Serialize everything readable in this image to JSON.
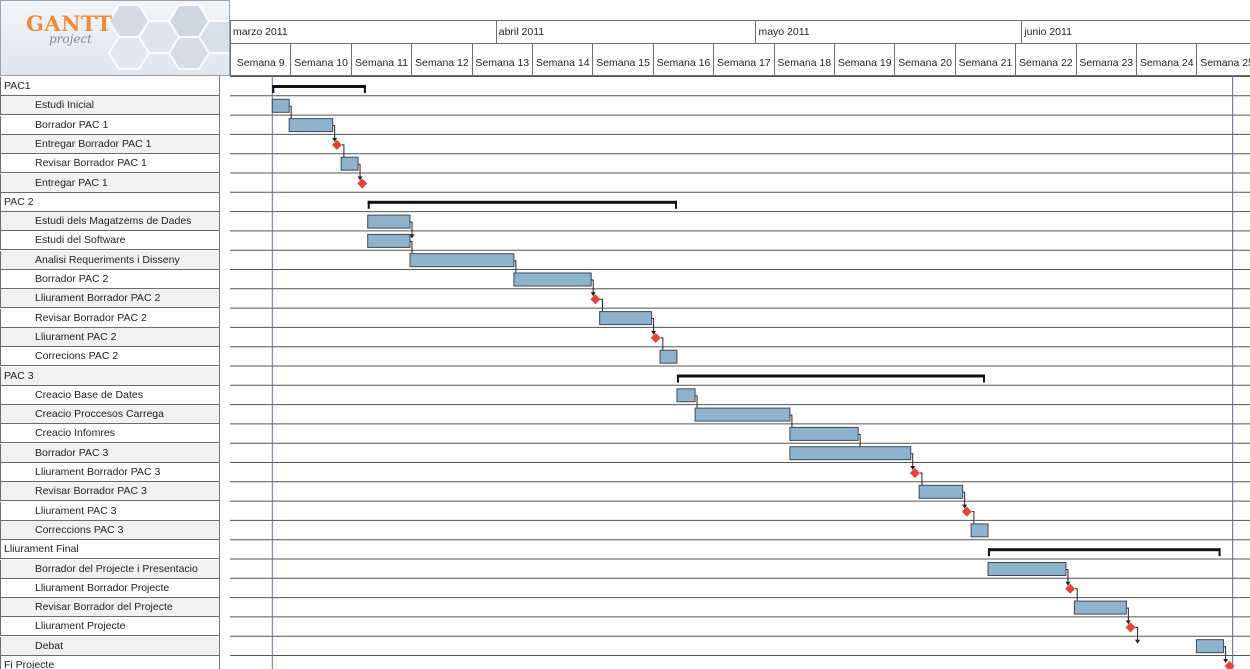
{
  "app": {
    "logo_main": "GANTT",
    "logo_sub": "project"
  },
  "timeline": {
    "months": [
      {
        "label": "marzo 2011",
        "startWeekIndex": 0,
        "weeks": 4.4
      },
      {
        "label": "abril 2011",
        "startWeekIndex": 4.4,
        "weeks": 4.3
      },
      {
        "label": "mayo 2011",
        "startWeekIndex": 8.7,
        "weeks": 4.4
      },
      {
        "label": "junio 2011",
        "startWeekIndex": 13.1,
        "weeks": 3.9
      }
    ],
    "weeks": [
      "Semana 9",
      "Semana 10",
      "Semana 11",
      "Semana 12",
      "Semana 13",
      "Semana 14",
      "Semana 15",
      "Semana 16",
      "Semana 17",
      "Semana 18",
      "Semana 19",
      "Semana 20",
      "Semana 21",
      "Semana 22",
      "Semana 23",
      "Semana 24",
      "Semana 25"
    ]
  },
  "colors": {
    "bar_fill": "#8fb2cd",
    "bar_stroke": "#3a4a5a",
    "milestone": "#e8403a",
    "summary": "#111111",
    "today_line": "#6060c8",
    "grid_line": "#555555"
  },
  "tasks": [
    {
      "name": "PAC1",
      "type": "summary",
      "start": 0.7,
      "end": 2.25
    },
    {
      "name": "Estudi Inicial",
      "type": "task",
      "start": 0.7,
      "end": 0.98
    },
    {
      "name": "Borrador PAC 1",
      "type": "task",
      "start": 0.98,
      "end": 1.7
    },
    {
      "name": "Entregar Borrador PAC 1",
      "type": "milestone",
      "start": 1.77
    },
    {
      "name": "Revisar Borrador PAC 1",
      "type": "task",
      "start": 1.84,
      "end": 2.12
    },
    {
      "name": "Entregar PAC 1",
      "type": "milestone",
      "start": 2.19
    },
    {
      "name": "PAC 2",
      "type": "summary",
      "start": 2.28,
      "end": 7.4
    },
    {
      "name": "Estudi dels Magatzems de Dades",
      "type": "task",
      "start": 2.28,
      "end": 2.98
    },
    {
      "name": "Estudi del Software",
      "type": "task",
      "start": 2.28,
      "end": 2.98
    },
    {
      "name": "Analisi Requeriments i Disseny",
      "type": "task",
      "start": 2.98,
      "end": 4.7
    },
    {
      "name": "Borrador PAC 2",
      "type": "task",
      "start": 4.7,
      "end": 5.98
    },
    {
      "name": "Lliurament Borrador PAC 2",
      "type": "milestone",
      "start": 6.05
    },
    {
      "name": "Revisar Borrador PAC 2",
      "type": "task",
      "start": 6.12,
      "end": 6.98
    },
    {
      "name": "Lliurament PAC 2",
      "type": "milestone",
      "start": 7.05
    },
    {
      "name": "Correcions PAC 2",
      "type": "task",
      "start": 7.12,
      "end": 7.4
    },
    {
      "name": "PAC 3",
      "type": "summary",
      "start": 7.4,
      "end": 12.5
    },
    {
      "name": "Creacio Base de Dates",
      "type": "task",
      "start": 7.4,
      "end": 7.7
    },
    {
      "name": "Creacio Proccesos Carrega",
      "type": "task",
      "start": 7.7,
      "end": 9.27
    },
    {
      "name": "Creacio Infomres",
      "type": "task",
      "start": 9.27,
      "end": 10.4
    },
    {
      "name": "Borrador PAC 3",
      "type": "task",
      "start": 9.27,
      "end": 11.27
    },
    {
      "name": "Lliurament Borrador PAC 3",
      "type": "milestone",
      "start": 11.34
    },
    {
      "name": "Revisar Borrador PAC 3",
      "type": "task",
      "start": 11.41,
      "end": 12.13
    },
    {
      "name": "Lliurament PAC 3",
      "type": "milestone",
      "start": 12.2
    },
    {
      "name": "Correccions PAC 3",
      "type": "task",
      "start": 12.27,
      "end": 12.55
    },
    {
      "name": "Lliurament Final",
      "type": "summary",
      "start": 12.55,
      "end": 16.4
    },
    {
      "name": "Borrador del Projecte i Presentacio",
      "type": "task",
      "start": 12.55,
      "end": 13.84
    },
    {
      "name": "Lliurament Borrador Projecte",
      "type": "milestone",
      "start": 13.91
    },
    {
      "name": "Revisar Borrador del Projecte",
      "type": "task",
      "start": 13.98,
      "end": 14.84
    },
    {
      "name": "Lliurament Projecte",
      "type": "milestone",
      "start": 14.91
    },
    {
      "name": "Debat",
      "type": "task",
      "start": 16.0,
      "end": 16.45
    },
    {
      "name": "Fi Projecte",
      "type": "milestone",
      "start": 16.55
    }
  ],
  "indent": [
    "group",
    "child",
    "child",
    "child",
    "child",
    "child",
    "group",
    "child",
    "child",
    "child",
    "child",
    "child",
    "child",
    "child",
    "child",
    "group",
    "child",
    "child",
    "child",
    "child",
    "child",
    "child",
    "child",
    "child",
    "group",
    "child",
    "child",
    "child",
    "child",
    "child",
    "group"
  ],
  "today_week": 0.7,
  "today_week_end": 16.6
}
